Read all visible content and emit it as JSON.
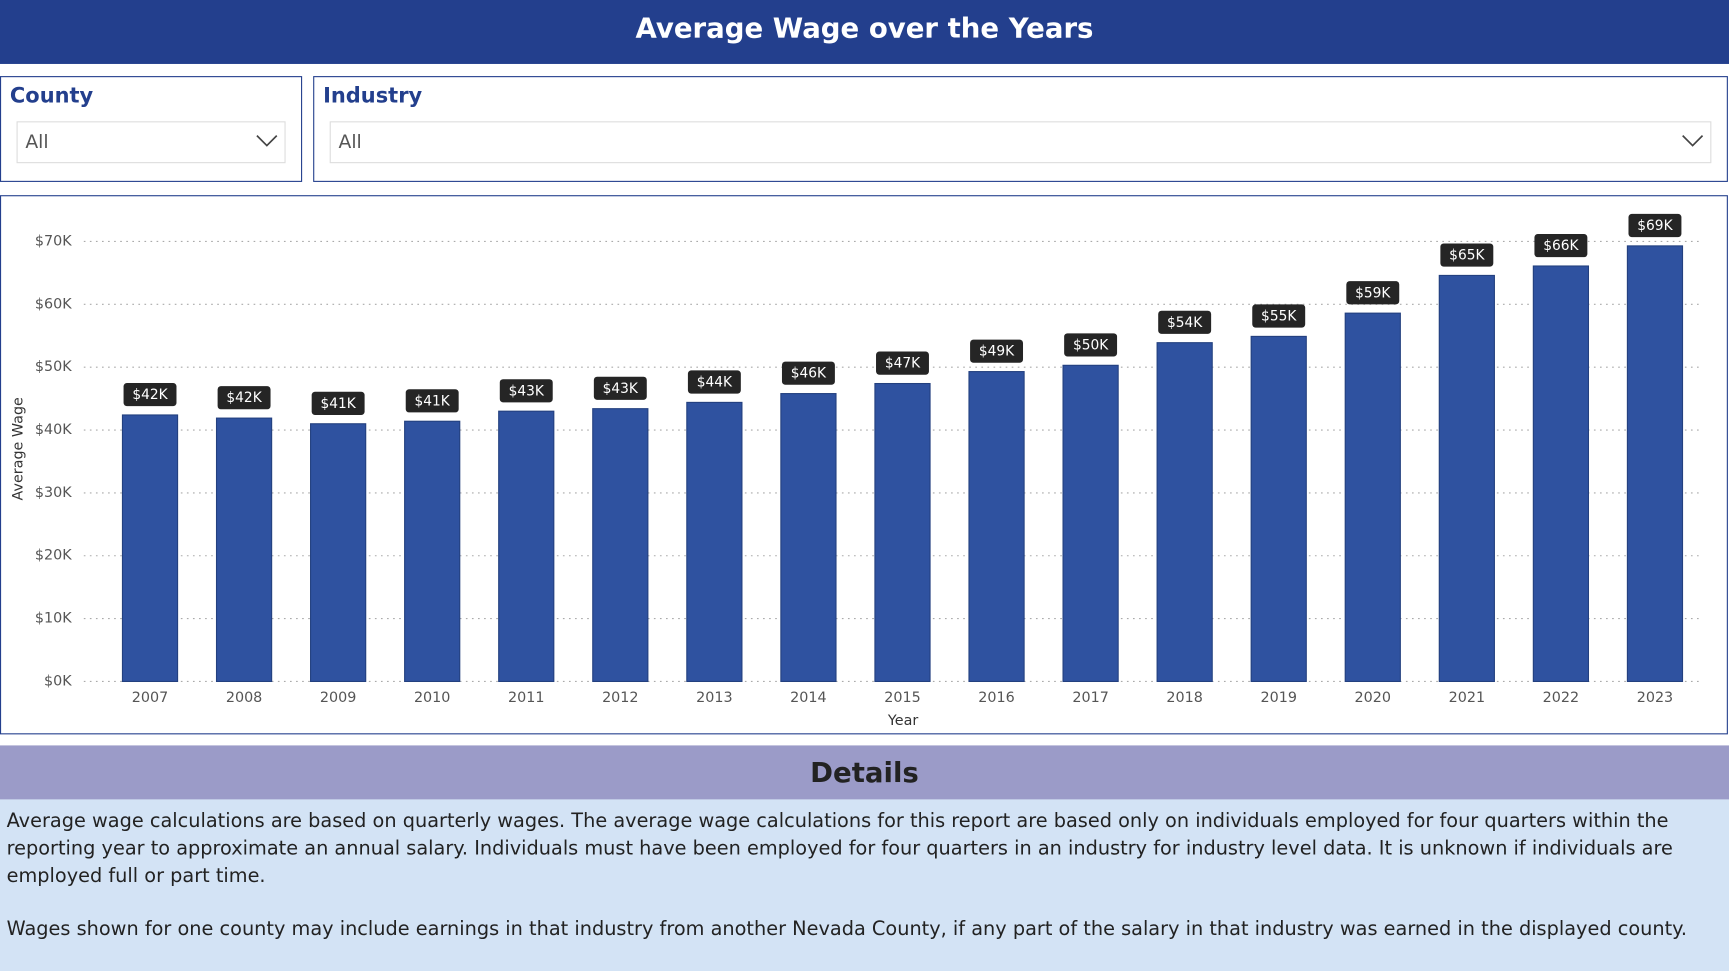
{
  "header": {
    "title": "Average Wage over the Years"
  },
  "filters": [
    {
      "label": "County",
      "value": "All"
    },
    {
      "label": "Industry",
      "value": "All"
    }
  ],
  "chart_data": {
    "type": "bar",
    "x_label": "Year",
    "y_label": "Average Wage",
    "categories": [
      "2007",
      "2008",
      "2009",
      "2010",
      "2011",
      "2012",
      "2013",
      "2014",
      "2015",
      "2016",
      "2017",
      "2018",
      "2019",
      "2020",
      "2021",
      "2022",
      "2023"
    ],
    "values": [
      42400,
      41900,
      41000,
      41400,
      43000,
      43400,
      44400,
      45800,
      47400,
      49300,
      50300,
      53900,
      54900,
      58600,
      64600,
      66100,
      69300
    ],
    "value_labels": [
      "$42K",
      "$42K",
      "$41K",
      "$41K",
      "$43K",
      "$43K",
      "$44K",
      "$46K",
      "$47K",
      "$49K",
      "$50K",
      "$54K",
      "$55K",
      "$59K",
      "$65K",
      "$66K",
      "$69K"
    ],
    "color": "#2f52a0",
    "ylim": [
      0,
      70000
    ],
    "yticks": [
      {
        "value": 0,
        "label": "$0K"
      },
      {
        "value": 10000,
        "label": "$10K"
      },
      {
        "value": 20000,
        "label": "$20K"
      },
      {
        "value": 30000,
        "label": "$30K"
      },
      {
        "value": 40000,
        "label": "$40K"
      },
      {
        "value": 50000,
        "label": "$50K"
      },
      {
        "value": 60000,
        "label": "$60K"
      },
      {
        "value": 70000,
        "label": "$70K"
      }
    ],
    "grid": true
  },
  "details": {
    "title": "Details",
    "paragraphs": [
      "Average wage calculations are based on quarterly wages. The average wage calculations for this report are based only on individuals employed for four quarters within the reporting year to approximate an annual salary. Individuals must have been employed for four quarters in an industry for industry level data. It is unknown if individuals are employed full or part time.",
      "Wages shown for one county may include earnings in that industry from another Nevada County, if any part of the salary in that industry was earned in the displayed county."
    ]
  }
}
